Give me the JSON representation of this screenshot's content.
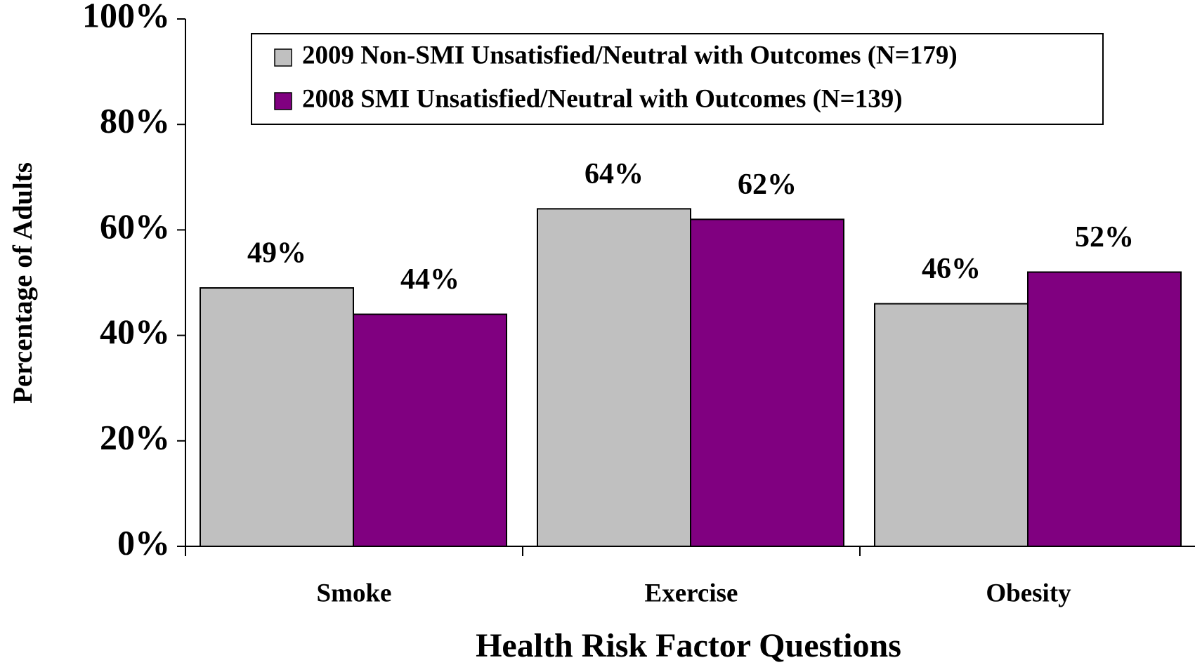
{
  "chart_data": {
    "type": "bar",
    "xlabel": "Health Risk Factor Questions",
    "ylabel": "Percentage of Adults",
    "categories": [
      "Smoke",
      "Exercise",
      "Obesity"
    ],
    "series": [
      {
        "name": "2009 Non-SMI Unsatisfied/Neutral with Outcomes (N=179)",
        "color": "#c0c0c0",
        "values": [
          49,
          64,
          46
        ],
        "value_labels": [
          "49%",
          "64%",
          "46%"
        ]
      },
      {
        "name": "2008 SMI Unsatisfied/Neutral with Outcomes (N=139)",
        "color": "#800080",
        "values": [
          44,
          62,
          52
        ],
        "value_labels": [
          "44%",
          "62%",
          "52%"
        ]
      }
    ],
    "ylim": [
      0,
      100
    ],
    "yticks": [
      {
        "value": 0,
        "label": "0%"
      },
      {
        "value": 20,
        "label": "20%"
      },
      {
        "value": 40,
        "label": "40%"
      },
      {
        "value": 60,
        "label": "60%"
      },
      {
        "value": 80,
        "label": "80%"
      },
      {
        "value": 100,
        "label": "100%"
      }
    ],
    "legend": "top"
  }
}
